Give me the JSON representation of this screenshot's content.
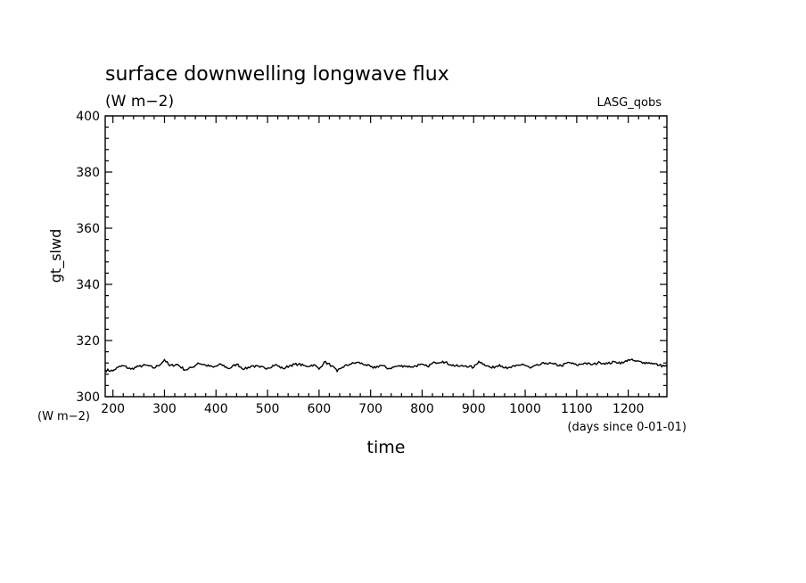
{
  "chart_data": {
    "type": "line",
    "title": "surface downwelling longwave flux",
    "subtitle": "(W m−2)",
    "annotation": "LASG_qobs",
    "xlabel": "time",
    "xunits": "(days since 0-01-01)",
    "ylabel": "gt_slwd",
    "yunits": "(W m−2)",
    "xlim": [
      185,
      1275
    ],
    "ylim": [
      300,
      400
    ],
    "xticks": [
      200,
      300,
      400,
      500,
      600,
      700,
      800,
      900,
      1000,
      1100,
      1200
    ],
    "xtick_labels": [
      "200",
      "300",
      "400",
      "500",
      "600",
      "700",
      "800",
      "900",
      "1000",
      "1100",
      "1200"
    ],
    "yticks": [
      300,
      320,
      340,
      360,
      380,
      400
    ],
    "ytick_labels": [
      "300",
      "320",
      "340",
      "360",
      "380",
      "400"
    ],
    "grid": false,
    "line_color": "#000000",
    "series": [
      {
        "x": [
          185,
          200,
          210,
          220,
          235,
          250,
          265,
          280,
          295,
          300,
          310,
          325,
          340,
          355,
          365,
          380,
          395,
          410,
          425,
          440,
          455,
          470,
          485,
          500,
          515,
          530,
          545,
          560,
          575,
          590,
          600,
          610,
          625,
          635,
          645,
          660,
          675,
          690,
          705,
          720,
          735,
          750,
          765,
          780,
          795,
          810,
          825,
          840,
          855,
          870,
          885,
          900,
          910,
          920,
          935,
          950,
          965,
          980,
          995,
          1010,
          1025,
          1040,
          1055,
          1070,
          1085,
          1100,
          1115,
          1130,
          1145,
          1160,
          1175,
          1190,
          1200,
          1215,
          1230,
          1245,
          1260,
          1275
        ],
        "y": [
          309.5,
          309.2,
          310.5,
          311.0,
          309.8,
          310.8,
          311.2,
          310.2,
          312.0,
          313.2,
          311.0,
          311.5,
          309.5,
          310.5,
          312.0,
          311.2,
          310.5,
          311.5,
          310.0,
          311.6,
          309.8,
          311.0,
          310.5,
          310.2,
          311.4,
          310.0,
          311.2,
          311.6,
          310.8,
          311.4,
          309.8,
          312.4,
          311.0,
          309.0,
          310.5,
          311.6,
          312.2,
          311.4,
          310.2,
          311.2,
          310.0,
          310.8,
          311.0,
          310.6,
          311.4,
          310.8,
          312.2,
          312.6,
          311.4,
          310.8,
          311.0,
          310.4,
          312.6,
          311.6,
          310.2,
          311.4,
          310.0,
          310.8,
          311.6,
          310.2,
          311.2,
          312.0,
          311.6,
          311.0,
          312.2,
          311.2,
          312.0,
          311.4,
          312.2,
          311.8,
          312.4,
          312.0,
          313.2,
          312.6,
          312.2,
          312.0,
          311.2,
          310.8
        ]
      }
    ]
  }
}
